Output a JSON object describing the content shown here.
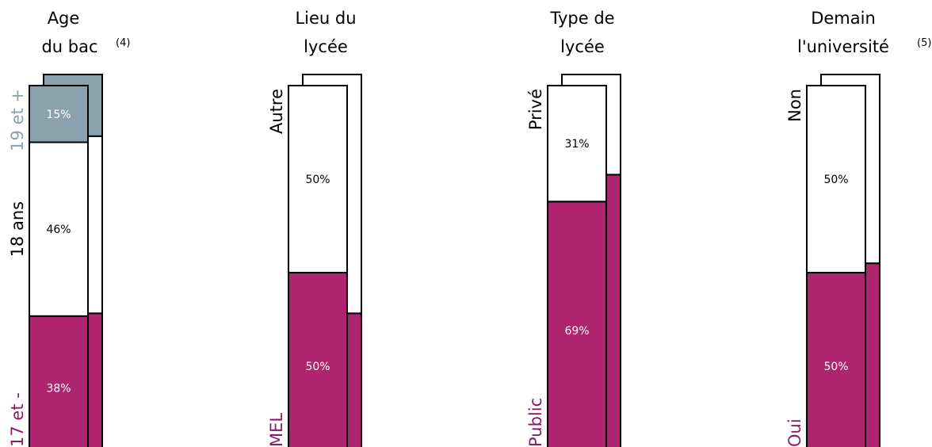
{
  "colors": {
    "magenta": "#AF246E",
    "gray_blue": "#8AA2AD",
    "white": "#FFFFFF",
    "outline": "#000000",
    "label_magenta": "#8B1A6B"
  },
  "chart_data": [
    {
      "type": "bar",
      "stacked": true,
      "title_lines": [
        "Age",
        "du bac"
      ],
      "title_note": "(4)",
      "segments": [
        {
          "label": "17 et -",
          "value": 38,
          "value_label": "38%",
          "color": "#AF246E",
          "label_color": "#8B1A6B"
        },
        {
          "label": "18 ans",
          "value": 46,
          "value_label": "46%",
          "color": "#FFFFFF",
          "label_color": "#000000"
        },
        {
          "label": "19 et +",
          "value": 15,
          "value_label": "15%",
          "color": "#8AA2AD",
          "label_color": "#8AA2AD"
        }
      ],
      "comparison": [
        38,
        46,
        16
      ]
    },
    {
      "type": "bar",
      "stacked": true,
      "title_lines": [
        "Lieu du",
        "lycée"
      ],
      "title_note": "",
      "segments": [
        {
          "label": "MEL",
          "value": 50,
          "value_label": "50%",
          "color": "#AF246E",
          "label_color": "#8B1A6B"
        },
        {
          "label": "Autre",
          "value": 50,
          "value_label": "50%",
          "color": "#FFFFFF",
          "label_color": "#000000"
        }
      ],
      "comparison": [
        38,
        62
      ]
    },
    {
      "type": "bar",
      "stacked": true,
      "title_lines": [
        "Type de",
        "lycée"
      ],
      "title_note": "",
      "segments": [
        {
          "label": "Public",
          "value": 69,
          "value_label": "69%",
          "color": "#AF246E",
          "label_color": "#8B1A6B"
        },
        {
          "label": "Privé",
          "value": 31,
          "value_label": "31%",
          "color": "#FFFFFF",
          "label_color": "#000000"
        }
      ],
      "comparison": [
        74,
        26
      ]
    },
    {
      "type": "bar",
      "stacked": true,
      "title_lines": [
        "Demain",
        "l'université"
      ],
      "title_note": "(5)",
      "segments": [
        {
          "label": "Oui",
          "value": 50,
          "value_label": "50%",
          "color": "#AF246E",
          "label_color": "#8B1A6B"
        },
        {
          "label": "Non",
          "value": 50,
          "value_label": "50%",
          "color": "#FFFFFF",
          "label_color": "#000000"
        }
      ],
      "comparison": [
        51,
        49
      ]
    }
  ]
}
